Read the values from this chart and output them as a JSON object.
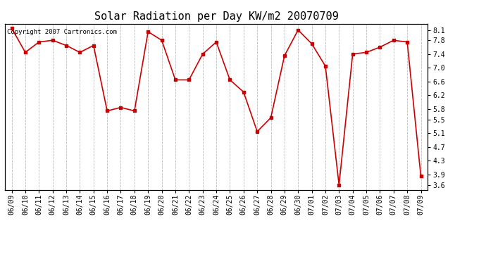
{
  "title": "Solar Radiation per Day KW/m2 20070709",
  "copyright_text": "Copyright 2007 Cartronics.com",
  "x_labels": [
    "06/09",
    "06/10",
    "06/11",
    "06/12",
    "06/13",
    "06/14",
    "06/15",
    "06/16",
    "06/17",
    "06/18",
    "06/19",
    "06/20",
    "06/21",
    "06/22",
    "06/23",
    "06/24",
    "06/25",
    "06/26",
    "06/27",
    "06/28",
    "06/29",
    "06/30",
    "07/01",
    "07/02",
    "07/03",
    "07/04",
    "07/05",
    "07/06",
    "07/07",
    "07/08",
    "07/09"
  ],
  "y_values": [
    8.15,
    7.45,
    7.75,
    7.8,
    7.65,
    7.45,
    7.65,
    5.75,
    5.85,
    5.75,
    8.05,
    7.8,
    6.65,
    6.65,
    7.4,
    7.75,
    6.65,
    6.3,
    5.15,
    5.55,
    7.35,
    8.1,
    7.7,
    7.05,
    3.6,
    7.4,
    7.45,
    7.6,
    7.8,
    7.75,
    3.85
  ],
  "y_ticks": [
    3.6,
    3.9,
    4.3,
    4.7,
    5.1,
    5.5,
    5.8,
    6.2,
    6.6,
    7.0,
    7.4,
    7.8,
    8.1
  ],
  "ylim": [
    3.45,
    8.28
  ],
  "line_color": "#cc0000",
  "marker": "s",
  "marker_size": 2.5,
  "line_width": 1.2,
  "bg_color": "#ffffff",
  "grid_color": "#aaaaaa",
  "title_fontsize": 11,
  "tick_fontsize": 7,
  "copyright_fontsize": 6.5
}
